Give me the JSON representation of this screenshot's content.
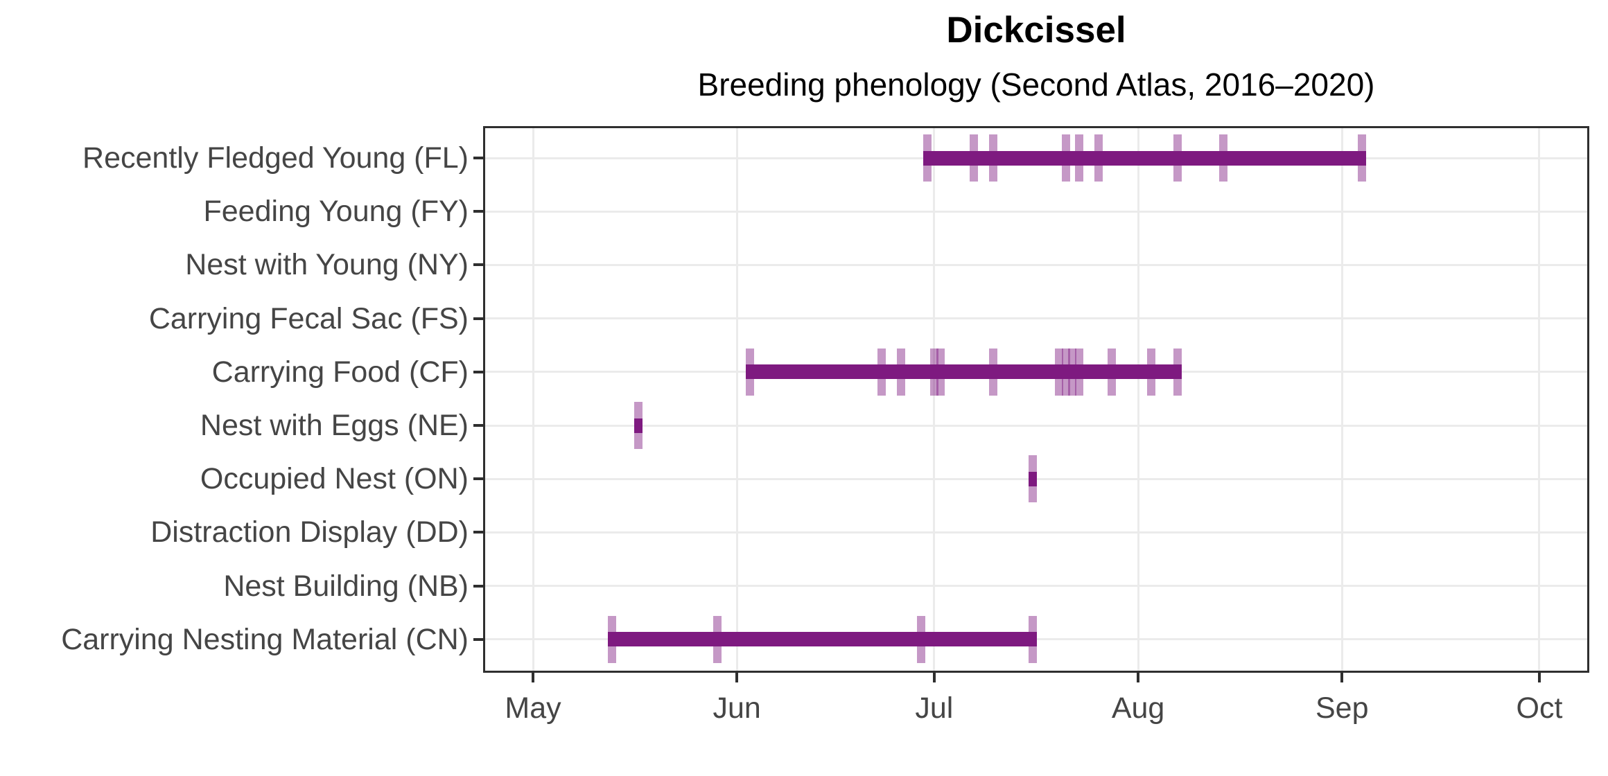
{
  "title": "Dickcissel",
  "subtitle": "Breeding phenology (Second Atlas, 2016–2020)",
  "chart_data": {
    "type": "bar",
    "orientation": "horizontal-range-timeline",
    "title": "Dickcissel",
    "subtitle": "Breeding phenology (Second Atlas, 2016–2020)",
    "xlabel": "",
    "ylabel": "",
    "grid": "major-only",
    "legend": "none",
    "x_axis": {
      "tick_labels": [
        "May",
        "Jun",
        "Jul",
        "Aug",
        "Sep",
        "Oct"
      ],
      "tick_day_offsets_from_may1": [
        0,
        31,
        61,
        92,
        123,
        153
      ],
      "domain_days_from_may1": [
        -7.6,
        160.6
      ]
    },
    "colors": {
      "range_bar": "#7e1a80",
      "observation_tick": "rgba(126,26,128,0.45)",
      "gridline": "#ebebeb",
      "panel_border": "#2f2f2f",
      "axis_text": "#454545"
    },
    "rows": [
      {
        "label": "Recently Fledged Young (FL)",
        "code": "FL",
        "range_days": [
          60,
          126
        ],
        "range_dates": [
          "Jun 30",
          "Sep 4"
        ],
        "observation_days": [
          60,
          67,
          70,
          81,
          83,
          86,
          98,
          105,
          126
        ],
        "observation_dates": [
          "Jun 30",
          "Jul 7",
          "Jul 10",
          "Jul 21",
          "Jul 23",
          "Jul 26",
          "Aug 7",
          "Aug 14",
          "Sep 4"
        ]
      },
      {
        "label": "Feeding Young (FY)",
        "code": "FY",
        "range_days": null,
        "range_dates": null,
        "observation_days": [],
        "observation_dates": []
      },
      {
        "label": "Nest with Young (NY)",
        "code": "NY",
        "range_days": null,
        "range_dates": null,
        "observation_days": [],
        "observation_dates": []
      },
      {
        "label": "Carrying Fecal Sac (FS)",
        "code": "FS",
        "range_days": null,
        "range_dates": null,
        "observation_days": [],
        "observation_dates": []
      },
      {
        "label": "Carrying Food (CF)",
        "code": "CF",
        "range_days": [
          33,
          98
        ],
        "range_dates": [
          "Jun 3",
          "Aug 7"
        ],
        "observation_days": [
          33,
          53,
          56,
          61,
          62,
          70,
          80,
          81,
          82,
          83,
          88,
          94,
          98
        ],
        "observation_dates": [
          "Jun 3",
          "Jun 23",
          "Jun 26",
          "Jul 1",
          "Jul 2",
          "Jul 10",
          "Jul 20",
          "Jul 21",
          "Jul 22",
          "Jul 23",
          "Jul 28",
          "Aug 3",
          "Aug 7"
        ]
      },
      {
        "label": "Nest with Eggs (NE)",
        "code": "NE",
        "range_days": [
          16,
          16
        ],
        "range_dates": [
          "May 17",
          "May 17"
        ],
        "observation_days": [
          16
        ],
        "observation_dates": [
          "May 17"
        ]
      },
      {
        "label": "Occupied Nest (ON)",
        "code": "ON",
        "range_days": [
          76,
          76
        ],
        "range_dates": [
          "Jul 16",
          "Jul 16"
        ],
        "observation_days": [
          76
        ],
        "observation_dates": [
          "Jul 16"
        ]
      },
      {
        "label": "Distraction Display (DD)",
        "code": "DD",
        "range_days": null,
        "range_dates": null,
        "observation_days": [],
        "observation_dates": []
      },
      {
        "label": "Nest Building (NB)",
        "code": "NB",
        "range_days": null,
        "range_dates": null,
        "observation_days": [],
        "observation_dates": []
      },
      {
        "label": "Carrying Nesting Material (CN)",
        "code": "CN",
        "range_days": [
          12,
          76
        ],
        "range_dates": [
          "May 13",
          "Jul 16"
        ],
        "observation_days": [
          12,
          28,
          59,
          76
        ],
        "observation_dates": [
          "May 13",
          "May 29",
          "Jun 29",
          "Jul 16"
        ]
      }
    ]
  }
}
